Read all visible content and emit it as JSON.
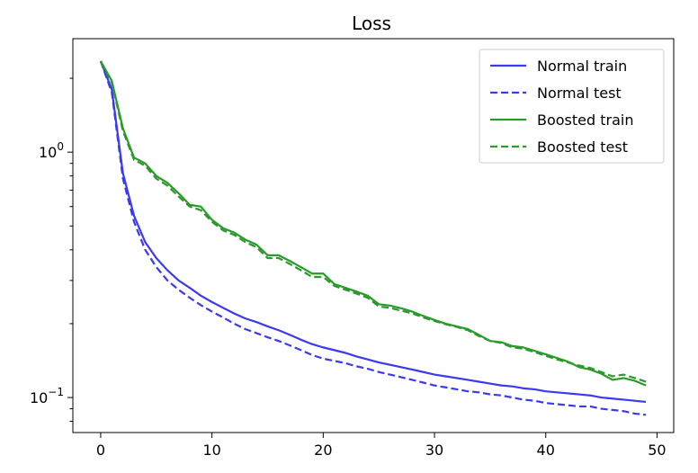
{
  "chart_data": {
    "type": "line",
    "title": "Loss",
    "xlabel": "",
    "ylabel": "",
    "yscale": "log",
    "xlim": [
      -2.5,
      51.5
    ],
    "ylim": [
      0.072,
      2.9
    ],
    "grid": false,
    "legend_position": "top-right",
    "x_ticks": [
      0,
      10,
      20,
      30,
      40,
      50
    ],
    "x_tick_labels": [
      "0",
      "10",
      "20",
      "30",
      "40",
      "50"
    ],
    "y_ticks": [
      {
        "value": 1,
        "base": "10",
        "exp": "0"
      },
      {
        "value": 0.1,
        "base": "10",
        "exp": "−1"
      }
    ],
    "x": [
      0,
      1,
      2,
      3,
      4,
      5,
      6,
      7,
      8,
      9,
      10,
      11,
      12,
      13,
      14,
      15,
      16,
      17,
      18,
      19,
      20,
      21,
      22,
      23,
      24,
      25,
      26,
      27,
      28,
      29,
      30,
      31,
      32,
      33,
      34,
      35,
      36,
      37,
      38,
      39,
      40,
      41,
      42,
      43,
      44,
      45,
      46,
      47,
      48,
      49
    ],
    "series": [
      {
        "name": "Normal train",
        "color": "#3a3af0",
        "style": "solid",
        "values": [
          2.35,
          1.8,
          0.82,
          0.55,
          0.43,
          0.37,
          0.33,
          0.3,
          0.28,
          0.26,
          0.245,
          0.232,
          0.22,
          0.21,
          0.203,
          0.195,
          0.188,
          0.18,
          0.172,
          0.165,
          0.16,
          0.156,
          0.152,
          0.147,
          0.143,
          0.139,
          0.136,
          0.133,
          0.13,
          0.127,
          0.124,
          0.122,
          0.12,
          0.118,
          0.116,
          0.114,
          0.112,
          0.111,
          0.109,
          0.108,
          0.106,
          0.105,
          0.104,
          0.103,
          0.102,
          0.1,
          0.099,
          0.098,
          0.097,
          0.096
        ]
      },
      {
        "name": "Normal test",
        "color": "#3a3af0",
        "style": "dashed",
        "values": [
          2.35,
          1.75,
          0.78,
          0.52,
          0.4,
          0.34,
          0.3,
          0.275,
          0.255,
          0.238,
          0.224,
          0.212,
          0.2,
          0.19,
          0.183,
          0.176,
          0.17,
          0.163,
          0.156,
          0.149,
          0.144,
          0.141,
          0.138,
          0.134,
          0.131,
          0.127,
          0.124,
          0.121,
          0.118,
          0.115,
          0.112,
          0.11,
          0.108,
          0.106,
          0.105,
          0.103,
          0.102,
          0.1,
          0.098,
          0.097,
          0.095,
          0.094,
          0.093,
          0.092,
          0.092,
          0.09,
          0.089,
          0.088,
          0.086,
          0.085
        ]
      },
      {
        "name": "Boosted train",
        "color": "#2a9a2a",
        "style": "solid",
        "values": [
          2.35,
          1.95,
          1.25,
          0.95,
          0.9,
          0.8,
          0.75,
          0.68,
          0.61,
          0.6,
          0.53,
          0.49,
          0.47,
          0.44,
          0.42,
          0.38,
          0.38,
          0.36,
          0.34,
          0.32,
          0.32,
          0.29,
          0.28,
          0.27,
          0.26,
          0.24,
          0.237,
          0.231,
          0.224,
          0.215,
          0.207,
          0.2,
          0.195,
          0.19,
          0.18,
          0.17,
          0.168,
          0.162,
          0.16,
          0.155,
          0.15,
          0.145,
          0.14,
          0.133,
          0.13,
          0.125,
          0.118,
          0.12,
          0.117,
          0.112
        ]
      },
      {
        "name": "Boosted test",
        "color": "#2a9a2a",
        "style": "dashed",
        "values": [
          2.33,
          1.92,
          1.22,
          0.93,
          0.88,
          0.78,
          0.73,
          0.66,
          0.6,
          0.58,
          0.52,
          0.48,
          0.46,
          0.43,
          0.41,
          0.37,
          0.37,
          0.35,
          0.33,
          0.31,
          0.31,
          0.285,
          0.275,
          0.265,
          0.255,
          0.235,
          0.232,
          0.226,
          0.22,
          0.212,
          0.205,
          0.199,
          0.194,
          0.188,
          0.178,
          0.17,
          0.167,
          0.16,
          0.158,
          0.153,
          0.148,
          0.143,
          0.139,
          0.135,
          0.132,
          0.127,
          0.122,
          0.124,
          0.12,
          0.116
        ]
      }
    ]
  }
}
